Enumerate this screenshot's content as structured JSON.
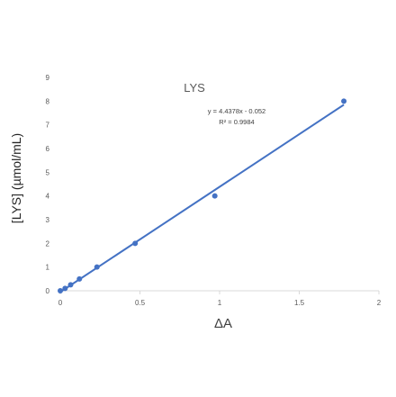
{
  "chart_data": {
    "type": "scatter",
    "title": "LYS",
    "xlabel": "ΔA",
    "ylabel": "[LYS] (µmol/mL)",
    "xlim": [
      0,
      2
    ],
    "ylim": [
      0,
      9
    ],
    "x_ticks": [
      "0",
      "0.5",
      "1",
      "1.5",
      "2"
    ],
    "y_ticks": [
      "0",
      "1",
      "2",
      "3",
      "4",
      "5",
      "6",
      "7",
      "8",
      "9"
    ],
    "grid": false,
    "legend": "none",
    "series": [
      {
        "points": [
          {
            "x": 0.0,
            "y": 0.0
          },
          {
            "x": 0.03,
            "y": 0.1
          },
          {
            "x": 0.065,
            "y": 0.25
          },
          {
            "x": 0.12,
            "y": 0.5
          },
          {
            "x": 0.23,
            "y": 1.0
          },
          {
            "x": 0.47,
            "y": 2.0
          },
          {
            "x": 0.97,
            "y": 4.0
          },
          {
            "x": 1.78,
            "y": 8.0
          }
        ],
        "color": "#4472c4"
      }
    ],
    "trendline": {
      "slope": 4.4378,
      "intercept": -0.052,
      "x_range": [
        0,
        1.78
      ],
      "color": "#4472c4",
      "equation": "y = 4.4378x - 0.052",
      "r_squared": "R² = 0.9984"
    }
  }
}
